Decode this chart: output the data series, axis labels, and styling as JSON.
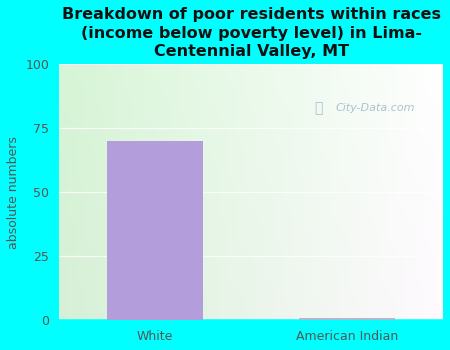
{
  "categories": [
    "White",
    "American Indian"
  ],
  "values": [
    70,
    1
  ],
  "bar_colors": [
    "#b39ddb",
    "#b0b8d0"
  ],
  "title": "Breakdown of poor residents within races\n(income below poverty level) in Lima-\nCentennial Valley, MT",
  "ylabel": "absolute numbers",
  "ylim": [
    0,
    100
  ],
  "yticks": [
    0,
    25,
    50,
    75,
    100
  ],
  "fig_bg": "#00ffff",
  "plot_bg_left": "#c8eec8",
  "plot_bg_right": "#f0faf0",
  "title_fontsize": 11.5,
  "ylabel_fontsize": 9,
  "tick_fontsize": 9,
  "label_color": "#555555",
  "watermark": "City-Data.com",
  "bar_width": 0.5
}
